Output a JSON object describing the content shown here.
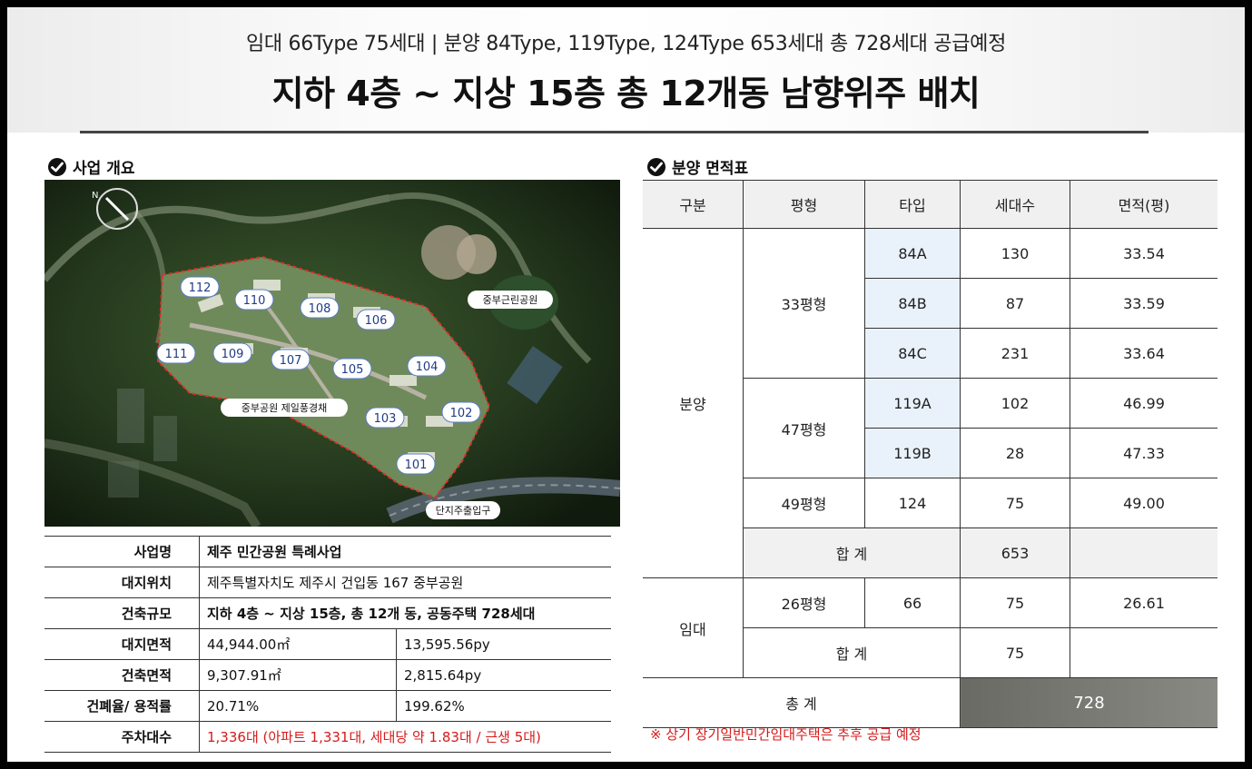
{
  "header": {
    "line1": "임대 66Type 75세대 |  분양 84Type, 119Type, 124Type 653세대 총 728세대 공급예정",
    "line2": "지하 4층 ~ 지상 15층 총 12개동 남향위주 배치"
  },
  "business": {
    "title": "사업 개요",
    "map_labels": {
      "b112": "112",
      "b110": "110",
      "b108": "108",
      "b106": "106",
      "b111": "111",
      "b109": "109",
      "b107": "107",
      "b105": "105",
      "b104": "104",
      "b103": "103",
      "b102": "102",
      "b101": "101",
      "park": "중부근린공원",
      "scenery": "중부공원 제일풍경채",
      "entrance": "단지주출입구"
    },
    "rows": [
      {
        "key": "사업명",
        "value": "제주 민간공원 특례사업"
      },
      {
        "key": "대지위치",
        "value": "제주특별자치도 제주시 건입동 167 중부공원"
      },
      {
        "key": "건축규모",
        "value": "지하 4층 ~ 지상 15층, 총 12개 동, 공동주택 728세대"
      },
      {
        "key": "대지면적",
        "value": "44,944.00㎡",
        "value2": "13,595.56py"
      },
      {
        "key": "건축면적",
        "value": "9,307.91㎡",
        "value2": "2,815.64py"
      },
      {
        "key": "건폐율/ 용적률",
        "value": "20.71%",
        "value2": "199.62%"
      },
      {
        "key": "주차대수",
        "value": "1,336대 (아파트 1,331대, 세대당  약 1.83대 / 근생 5대)"
      }
    ]
  },
  "sales": {
    "title": "분양 면적표",
    "headers": [
      "구분",
      "평형",
      "타입",
      "세대수",
      "면적(평)"
    ],
    "cat_sale": "분양",
    "cat_rent": "임대",
    "py33": "33평형",
    "py47": "47평형",
    "py49": "49평형",
    "py26": "26평형",
    "r84a": {
      "type": "84A",
      "units": "130",
      "area": "33.54"
    },
    "r84b": {
      "type": "84B",
      "units": "87",
      "area": "33.59"
    },
    "r84c": {
      "type": "84C",
      "units": "231",
      "area": "33.64"
    },
    "r119a": {
      "type": "119A",
      "units": "102",
      "area": "46.99"
    },
    "r119b": {
      "type": "119B",
      "units": "28",
      "area": "47.33"
    },
    "r124": {
      "type": "124",
      "units": "75",
      "area": "49.00"
    },
    "r66": {
      "type": "66",
      "units": "75",
      "area": "26.61"
    },
    "subtotal_label": "합 계",
    "sale_subtotal": "653",
    "rent_subtotal": "75",
    "total_label": "총 계",
    "total": "728",
    "note": "※ 상기 장기일반민간임대주택은 추후 공급 예정"
  },
  "colors": {
    "note_red": "#d61a1a",
    "type_cell": "#e9f2fa",
    "total_cell": "#77776f"
  }
}
